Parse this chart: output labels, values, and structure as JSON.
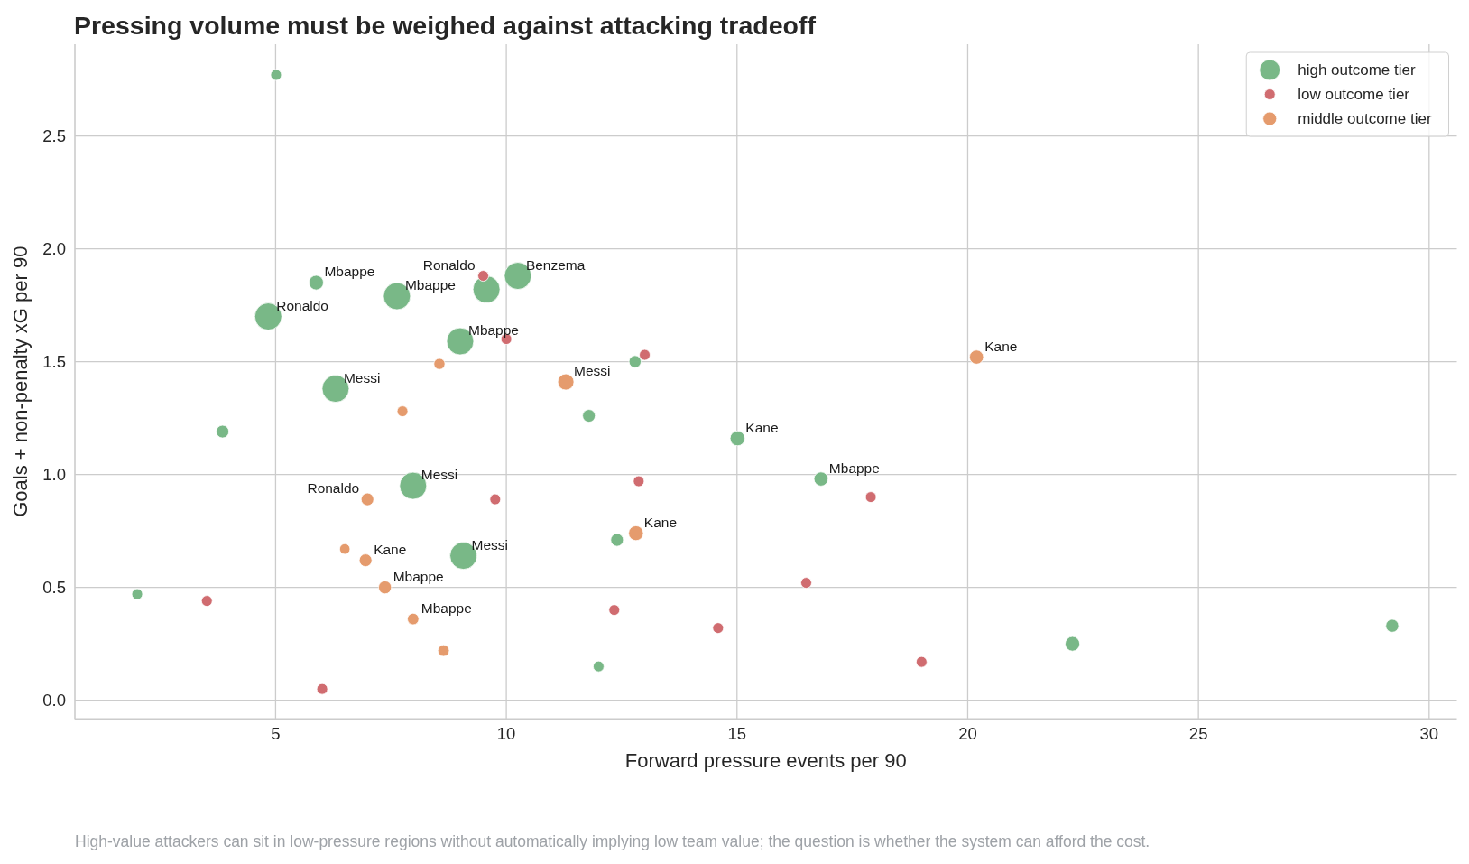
{
  "chart_data": {
    "type": "bubble",
    "title": "Pressing volume must be weighed against attacking tradeoff",
    "xlabel": "Forward pressure events per 90",
    "ylabel": "Goals + non-penalty xG per 90",
    "xlim": [
      0.65,
      30.6
    ],
    "xticks": [
      5,
      10,
      15,
      20,
      25,
      30
    ],
    "ylim": [
      -0.083,
      2.906
    ],
    "yticks": [
      {
        "value": 0,
        "label": "0.0"
      },
      {
        "value": 0.5,
        "label": "0.5"
      },
      {
        "value": 1,
        "label": "1.0"
      },
      {
        "value": 1.5,
        "label": "1.5"
      },
      {
        "value": 2,
        "label": "2.0"
      },
      {
        "value": 2.5,
        "label": "2.5"
      }
    ],
    "grid": true,
    "legend": "top right",
    "marker": "circle",
    "series": [
      {
        "name": "high outcome tier",
        "color": "#79b887",
        "x": [
          5.01,
          5.88,
          4.84,
          7.63,
          9.57,
          10.25,
          9.0,
          6.3,
          3.85,
          12.79,
          11.79,
          15.01,
          16.82,
          7.98,
          9.07,
          12.4,
          2.0,
          12.0,
          22.27,
          29.2
        ],
        "values": [
          2.77,
          1.85,
          1.7,
          1.79,
          1.82,
          1.88,
          1.59,
          1.38,
          1.19,
          1.5,
          1.26,
          1.16,
          0.98,
          0.95,
          0.64,
          0.71,
          0.47,
          0.15,
          0.25,
          0.33
        ],
        "sizes": [
          0.16,
          0.29,
          1,
          1,
          1,
          1,
          1,
          1,
          0.22,
          0.2,
          0.22,
          0.3,
          0.27,
          1,
          1,
          0.22,
          0.16,
          0.16,
          0.29,
          0.23
        ]
      },
      {
        "name": "low outcome tier",
        "color": "#d06c70",
        "x": [
          9.5,
          10.0,
          13.0,
          12.87,
          9.76,
          17.9,
          16.5,
          3.51,
          12.34,
          14.59,
          6.01,
          19.0
        ],
        "values": [
          1.88,
          1.6,
          1.53,
          0.97,
          0.89,
          0.9,
          0.52,
          0.44,
          0.4,
          0.32,
          0.05,
          0.17
        ],
        "sizes": [
          0.16,
          0.16,
          0.16,
          0.16,
          0.16,
          0.16,
          0.16,
          0.16,
          0.16,
          0.16,
          0.16,
          0.16
        ]
      },
      {
        "name": "middle outcome tier",
        "color": "#e59b6d",
        "x": [
          8.55,
          11.29,
          7.75,
          20.19,
          6.99,
          6.5,
          6.95,
          7.37,
          7.98,
          8.64,
          12.81
        ],
        "values": [
          1.49,
          1.41,
          1.28,
          1.52,
          0.89,
          0.67,
          0.62,
          0.5,
          0.36,
          0.22,
          0.74
        ],
        "sizes": [
          0.17,
          0.36,
          0.16,
          0.27,
          0.22,
          0.15,
          0.22,
          0.23,
          0.18,
          0.18,
          0.3
        ]
      }
    ],
    "annotations": [
      {
        "text": "Mbappe",
        "x": 5.88,
        "y": 1.85
      },
      {
        "text": "Ronaldo",
        "x": 4.84,
        "y": 1.7
      },
      {
        "text": "Mbappe",
        "x": 7.63,
        "y": 1.79
      },
      {
        "text": "Ronaldo",
        "x": 9.5,
        "y": 1.88
      },
      {
        "text": "Benzema",
        "x": 10.25,
        "y": 1.88
      },
      {
        "text": "Mbappe",
        "x": 9.0,
        "y": 1.59
      },
      {
        "text": "Messi",
        "x": 6.3,
        "y": 1.38
      },
      {
        "text": "Messi",
        "x": 11.29,
        "y": 1.41
      },
      {
        "text": "Kane",
        "x": 20.19,
        "y": 1.52
      },
      {
        "text": "Kane",
        "x": 15.01,
        "y": 1.16
      },
      {
        "text": "Mbappe",
        "x": 16.82,
        "y": 0.98
      },
      {
        "text": "Messi",
        "x": 7.98,
        "y": 0.95
      },
      {
        "text": "Ronaldo",
        "x": 6.99,
        "y": 0.89
      },
      {
        "text": "Kane",
        "x": 12.81,
        "y": 0.74
      },
      {
        "text": "Kane",
        "x": 6.95,
        "y": 0.62
      },
      {
        "text": "Messi",
        "x": 9.07,
        "y": 0.64
      },
      {
        "text": "Mbappe",
        "x": 7.37,
        "y": 0.5
      },
      {
        "text": "Mbappe",
        "x": 7.98,
        "y": 0.36
      },
      "High-value attackers can sit in low-pressure regions without automatically implying low team value; the question is whether the system can afford the cost."
    ]
  }
}
